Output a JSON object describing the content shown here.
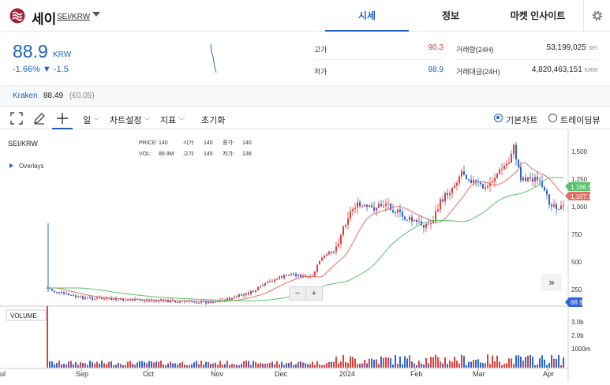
{
  "header": {
    "coin_name": "세이",
    "pair": "SEI/KRW",
    "tabs": [
      {
        "label": "시세",
        "active": true
      },
      {
        "label": "정보",
        "active": false
      },
      {
        "label": "마켓 인사이트",
        "active": false
      }
    ],
    "settings_icon": "gear-icon",
    "logo_icon": "sei-logo-icon"
  },
  "summary": {
    "price": "88.9",
    "unit": "KRW",
    "change_pct": "-1.66%",
    "change_abs": "▼ -1.5",
    "high_label": "고가",
    "high_value": "90.3",
    "low_label": "저가",
    "low_value": "88.9",
    "volume_label": "거래량(24H)",
    "volume_value": "53,199,025",
    "volume_unit": "SEI",
    "amount_label": "거래대금(24H)",
    "amount_value": "4,820,463,151",
    "amount_unit": "KRW"
  },
  "kraken": {
    "label": "Kraken",
    "value": "88.49",
    "sub": "(€0.05)"
  },
  "toolbar": {
    "interval": "일",
    "chart_settings": "차트설정",
    "indicators": "지표",
    "reset": "초기화",
    "basic_chart": "기본차트",
    "tradingview": "트레이딩뷰",
    "icons": [
      "fullscreen-icon",
      "pencil-icon",
      "crosshair-icon"
    ]
  },
  "chart": {
    "symbol": "SEI/KRW",
    "ohlc": {
      "price_label": "PRICE:",
      "price": "140",
      "open_label": "시가:",
      "open": "140",
      "close_label": "종가:",
      "close": "140",
      "vol_label": "VOL:",
      "vol": "89.9M",
      "high_label": "고가:",
      "high": "145",
      "low_label": "저가:",
      "low": "139"
    },
    "overlays": "Overlays",
    "volume_label": "VOLUME",
    "y_ticks": [
      "1,500",
      "1,250",
      "1,000",
      "750",
      "500",
      "250"
    ],
    "vol_ticks": [
      "3.0b",
      "2.0b",
      "1000m"
    ],
    "x_ticks": [
      "ul",
      "Sep",
      "Oct",
      "Nov",
      "Dec",
      "2024",
      "Feb",
      "Mar",
      "Apr"
    ],
    "price_tags": {
      "ma_green": "1,186.5",
      "ma_red": "1,107.1",
      "current": "88.9"
    },
    "zoom_minus": "−",
    "zoom_plus": "+",
    "more": "»",
    "colors": {
      "up": "#e0403a",
      "down": "#2d63d8",
      "ma_red": "#e36f63",
      "ma_green": "#55c26a",
      "current": "#2d63d8"
    }
  }
}
